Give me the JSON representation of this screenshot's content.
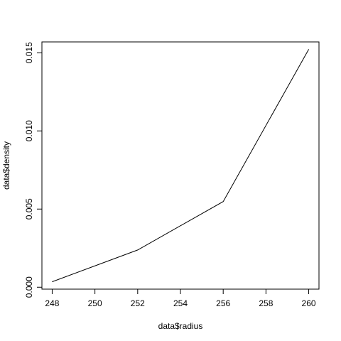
{
  "chart_data": {
    "type": "line",
    "xlabel": "data$radius",
    "ylabel": "data$density",
    "x": [
      248,
      252,
      256,
      260
    ],
    "y": [
      0.00035,
      0.00238,
      0.00548,
      0.01522
    ],
    "xlim": [
      247.52,
      260.48
    ],
    "ylim": [
      -0.000124,
      0.015694
    ],
    "xticks": [
      248,
      250,
      252,
      254,
      256,
      258,
      260
    ],
    "xtick_labels": [
      "248",
      "250",
      "252",
      "254",
      "256",
      "258",
      "260"
    ],
    "yticks": [
      0.0,
      0.005,
      0.01,
      0.015
    ],
    "ytick_labels": [
      "0.000",
      "0.005",
      "0.010",
      "0.015"
    ],
    "grid": false,
    "line_color": "#000000"
  }
}
